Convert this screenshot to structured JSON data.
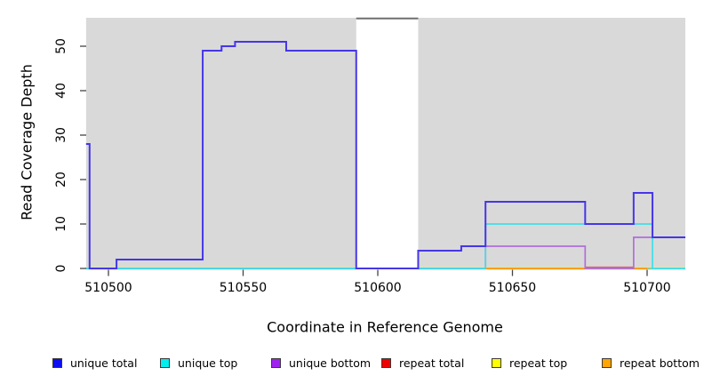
{
  "chart_data": {
    "type": "line",
    "subtype": "step-coverage",
    "title": "",
    "xlabel": "Coordinate in Reference Genome",
    "ylabel": "Read Coverage Depth",
    "xlim": [
      510491.7,
      510714.2
    ],
    "ylim": [
      0,
      56.4
    ],
    "xticks": [
      510500,
      510550,
      510600,
      510650,
      510700
    ],
    "yticks": [
      0,
      10,
      20,
      30,
      40,
      50
    ],
    "grid": "off",
    "legend_position": "bottom",
    "panel_bg": "#d9d9d9",
    "tick_color": "#444444",
    "masked_region": {
      "start": 510592,
      "end": 510615,
      "fill": "#ffffff",
      "top_line_color": "#6f6f6f"
    },
    "series": [
      {
        "name": "unique total",
        "legend_color": "#0e0ef0",
        "line_color": "#4636e6",
        "line_width": 2,
        "render": true,
        "segments": [
          [
            510491.7,
            510493,
            28
          ],
          [
            510493,
            510503,
            0
          ],
          [
            510503,
            510535,
            2
          ],
          [
            510535,
            510542,
            49
          ],
          [
            510542,
            510547,
            50
          ],
          [
            510547,
            510566,
            51
          ],
          [
            510566,
            510592,
            49
          ],
          [
            510592,
            510615,
            0
          ],
          [
            510615,
            510631,
            4
          ],
          [
            510631,
            510640,
            5
          ],
          [
            510640,
            510677,
            15
          ],
          [
            510677,
            510695,
            10
          ],
          [
            510695,
            510702,
            17
          ],
          [
            510702,
            510714.2,
            7
          ]
        ]
      },
      {
        "name": "unique top",
        "legend_color": "#00eeee",
        "line_color": "#3fdfe8",
        "line_width": 1.7,
        "render": true,
        "segments": [
          [
            510491.7,
            510640,
            0
          ],
          [
            510640,
            510702,
            10
          ],
          [
            510702,
            510714.2,
            0
          ]
        ]
      },
      {
        "name": "unique bottom",
        "legend_color": "#a020f0",
        "line_color": "#b06edc",
        "line_width": 1.7,
        "render": true,
        "segments": [
          [
            510491.7,
            510640,
            0
          ],
          [
            510640,
            510677,
            5
          ],
          [
            510677,
            510695,
            0
          ],
          [
            510695,
            510714.2,
            7
          ]
        ]
      },
      {
        "name": "repeat total",
        "legend_color": "#ee0000",
        "line_color": "#d2607f",
        "line_width": 1.2,
        "render": false,
        "segments": [
          [
            510491.7,
            510714.2,
            0
          ]
        ]
      },
      {
        "name": "repeat top",
        "legend_color": "#ffff00",
        "line_color": "#e8e400",
        "line_width": 1.2,
        "render": false,
        "segments": [
          [
            510491.7,
            510714.2,
            0
          ]
        ]
      },
      {
        "name": "repeat bottom",
        "legend_color": "#ffa500",
        "line_color": "#ff9d0c",
        "line_width": 2,
        "render": false,
        "segments": [
          [
            510491.7,
            510714.2,
            0
          ]
        ]
      }
    ],
    "baseline_overlays": [
      {
        "name": "zero-line-light-edge",
        "color": "#d9eca6",
        "start": 510491.7,
        "end": 510714.2,
        "value": 0.3,
        "width": 1.1
      },
      {
        "name": "zero-line-green-blend",
        "color": "#7ccb7a",
        "start": 510491.7,
        "end": 510714.2,
        "value": 0,
        "width": 1.5
      },
      {
        "name": "repeat-bottom-zero-trace",
        "color": "#ff9d0c",
        "start": 510640,
        "end": 510700,
        "value": 0,
        "width": 2
      },
      {
        "name": "repeat-total-zero-trace",
        "color": "#d2607f",
        "start": 510677,
        "end": 510695,
        "value": 0.3,
        "width": 1.2
      }
    ]
  }
}
